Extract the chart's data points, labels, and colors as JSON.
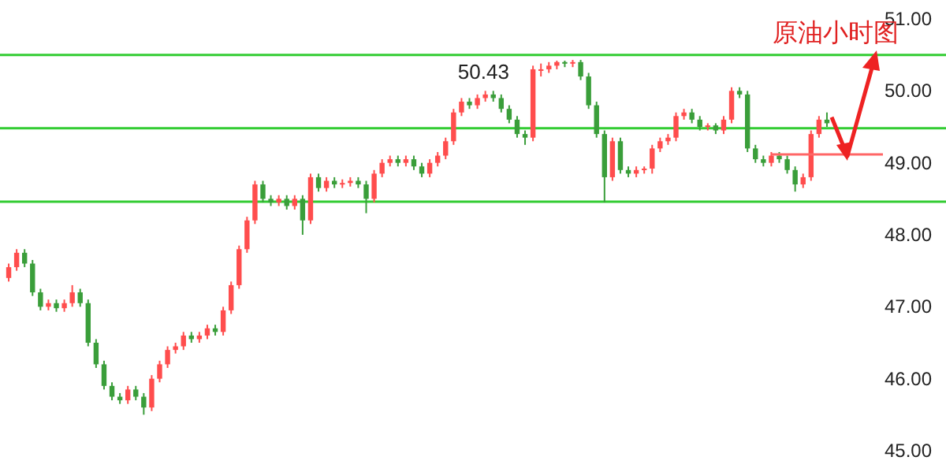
{
  "chart_data": {
    "type": "candlestick",
    "title": "原油小时图",
    "categories": [
      null,
      null,
      null,
      null,
      null,
      null,
      null,
      null,
      null,
      null,
      null,
      null,
      null,
      null,
      null,
      null,
      null,
      null,
      null,
      null,
      null,
      null,
      null,
      null,
      null,
      null,
      null,
      null,
      null,
      null,
      null,
      null,
      null,
      null,
      null,
      null,
      null,
      null,
      null,
      null,
      null,
      null,
      null,
      null,
      null,
      null,
      null,
      null,
      null,
      null,
      null,
      null,
      null,
      null,
      null,
      null,
      null,
      null,
      null,
      null,
      null,
      null,
      null,
      null,
      null,
      null,
      null,
      null,
      null,
      null,
      null,
      null,
      null,
      null,
      null,
      null,
      null,
      null,
      null,
      null,
      null,
      null,
      null,
      null,
      null,
      null,
      null,
      null,
      null,
      null,
      null,
      null,
      null,
      null,
      null,
      null,
      null,
      null,
      null,
      null,
      null,
      null,
      null,
      null
    ],
    "ohlc": [
      [
        47.4,
        47.6,
        47.35,
        47.55
      ],
      [
        47.55,
        47.8,
        47.5,
        47.75
      ],
      [
        47.75,
        47.8,
        47.55,
        47.6
      ],
      [
        47.6,
        47.65,
        47.15,
        47.2
      ],
      [
        47.2,
        47.25,
        46.95,
        47.0
      ],
      [
        47.0,
        47.1,
        46.95,
        47.05
      ],
      [
        47.05,
        47.1,
        46.93,
        46.98
      ],
      [
        46.98,
        47.1,
        46.93,
        47.05
      ],
      [
        47.05,
        47.3,
        47.0,
        47.2
      ],
      [
        47.2,
        47.25,
        47.0,
        47.05
      ],
      [
        47.05,
        47.1,
        46.45,
        46.5
      ],
      [
        46.5,
        46.55,
        46.15,
        46.2
      ],
      [
        46.2,
        46.25,
        45.85,
        45.9
      ],
      [
        45.9,
        45.95,
        45.7,
        45.75
      ],
      [
        45.75,
        45.8,
        45.65,
        45.7
      ],
      [
        45.7,
        45.9,
        45.65,
        45.85
      ],
      [
        45.85,
        45.9,
        45.7,
        45.75
      ],
      [
        45.75,
        45.8,
        45.5,
        45.6
      ],
      [
        45.6,
        46.05,
        45.55,
        46.0
      ],
      [
        46.0,
        46.25,
        45.95,
        46.2
      ],
      [
        46.2,
        46.45,
        46.15,
        46.4
      ],
      [
        46.4,
        46.5,
        46.35,
        46.45
      ],
      [
        46.45,
        46.65,
        46.4,
        46.6
      ],
      [
        46.6,
        46.65,
        46.5,
        46.55
      ],
      [
        46.55,
        46.65,
        46.5,
        46.6
      ],
      [
        46.6,
        46.75,
        46.55,
        46.7
      ],
      [
        46.7,
        46.75,
        46.6,
        46.65
      ],
      [
        46.65,
        47.0,
        46.6,
        46.95
      ],
      [
        46.95,
        47.35,
        46.9,
        47.3
      ],
      [
        47.3,
        47.85,
        47.25,
        47.8
      ],
      [
        47.8,
        48.25,
        47.75,
        48.2
      ],
      [
        48.2,
        48.75,
        48.15,
        48.7
      ],
      [
        48.7,
        48.75,
        48.45,
        48.5
      ],
      [
        48.5,
        48.55,
        48.4,
        48.45
      ],
      [
        48.45,
        48.55,
        48.4,
        48.5
      ],
      [
        48.5,
        48.55,
        48.35,
        48.4
      ],
      [
        48.4,
        48.55,
        48.35,
        48.5
      ],
      [
        48.5,
        48.55,
        48.0,
        48.2
      ],
      [
        48.2,
        48.85,
        48.15,
        48.8
      ],
      [
        48.8,
        48.85,
        48.6,
        48.65
      ],
      [
        48.65,
        48.8,
        48.6,
        48.75
      ],
      [
        48.75,
        48.8,
        48.65,
        48.7
      ],
      [
        48.7,
        48.77,
        48.65,
        48.72
      ],
      [
        48.72,
        48.8,
        48.67,
        48.75
      ],
      [
        48.75,
        48.8,
        48.65,
        48.7
      ],
      [
        48.7,
        48.75,
        48.3,
        48.5
      ],
      [
        48.5,
        48.9,
        48.45,
        48.85
      ],
      [
        48.85,
        49.05,
        48.8,
        49.0
      ],
      [
        49.0,
        49.1,
        48.95,
        49.05
      ],
      [
        49.05,
        49.1,
        48.95,
        49.0
      ],
      [
        49.0,
        49.1,
        48.95,
        49.05
      ],
      [
        49.05,
        49.1,
        48.9,
        48.95
      ],
      [
        48.95,
        49.0,
        48.8,
        48.85
      ],
      [
        48.85,
        49.05,
        48.8,
        49.0
      ],
      [
        49.0,
        49.15,
        48.95,
        49.1
      ],
      [
        49.1,
        49.35,
        49.05,
        49.3
      ],
      [
        49.3,
        49.75,
        49.25,
        49.7
      ],
      [
        49.7,
        49.9,
        49.65,
        49.85
      ],
      [
        49.85,
        49.9,
        49.75,
        49.8
      ],
      [
        49.8,
        49.95,
        49.75,
        49.9
      ],
      [
        49.9,
        50.0,
        49.85,
        49.95
      ],
      [
        49.95,
        50.0,
        49.85,
        49.9
      ],
      [
        49.9,
        49.95,
        49.7,
        49.75
      ],
      [
        49.75,
        49.8,
        49.55,
        49.6
      ],
      [
        49.6,
        49.65,
        49.35,
        49.4
      ],
      [
        49.4,
        49.45,
        49.25,
        49.35
      ],
      [
        49.35,
        50.35,
        49.3,
        50.3
      ],
      [
        50.3,
        50.38,
        50.2,
        50.3
      ],
      [
        50.3,
        50.4,
        50.25,
        50.35
      ],
      [
        50.35,
        50.42,
        50.3,
        50.4
      ],
      [
        50.4,
        50.42,
        50.33,
        50.38
      ],
      [
        50.38,
        50.43,
        50.33,
        50.4
      ],
      [
        50.4,
        50.43,
        50.15,
        50.2
      ],
      [
        50.2,
        50.25,
        49.75,
        49.8
      ],
      [
        49.8,
        49.85,
        49.35,
        49.4
      ],
      [
        49.4,
        49.45,
        48.45,
        48.8
      ],
      [
        48.8,
        49.35,
        48.75,
        49.3
      ],
      [
        49.3,
        49.35,
        48.85,
        48.9
      ],
      [
        48.9,
        48.95,
        48.8,
        48.85
      ],
      [
        48.85,
        48.95,
        48.8,
        48.9
      ],
      [
        48.9,
        48.95,
        48.85,
        48.92
      ],
      [
        48.92,
        49.25,
        48.85,
        49.2
      ],
      [
        49.2,
        49.35,
        49.15,
        49.3
      ],
      [
        49.3,
        49.4,
        49.25,
        49.35
      ],
      [
        49.35,
        49.7,
        49.3,
        49.65
      ],
      [
        49.65,
        49.75,
        49.6,
        49.7
      ],
      [
        49.7,
        49.75,
        49.55,
        49.6
      ],
      [
        49.6,
        49.65,
        49.45,
        49.5
      ],
      [
        49.5,
        49.55,
        49.45,
        49.52
      ],
      [
        49.52,
        49.55,
        49.4,
        49.45
      ],
      [
        49.45,
        49.65,
        49.4,
        49.6
      ],
      [
        49.6,
        50.05,
        49.55,
        50.0
      ],
      [
        50.0,
        50.05,
        49.9,
        49.95
      ],
      [
        49.95,
        50.0,
        49.15,
        49.2
      ],
      [
        49.2,
        49.25,
        49.0,
        49.05
      ],
      [
        49.05,
        49.1,
        48.95,
        49.0
      ],
      [
        49.0,
        49.15,
        48.95,
        49.1
      ],
      [
        49.1,
        49.15,
        49.0,
        49.05
      ],
      [
        49.05,
        49.1,
        48.85,
        48.9
      ],
      [
        48.9,
        48.95,
        48.6,
        48.7
      ],
      [
        48.7,
        48.85,
        48.65,
        48.8
      ],
      [
        48.8,
        49.45,
        48.75,
        49.4
      ],
      [
        49.4,
        49.65,
        49.35,
        49.6
      ],
      [
        49.6,
        49.7,
        49.5,
        49.55
      ]
    ],
    "ylim": [
      45,
      51
    ],
    "yticks": [
      {
        "value": 45,
        "label": "45.00"
      },
      {
        "value": 46,
        "label": "46.00"
      },
      {
        "value": 47,
        "label": "47.00"
      },
      {
        "value": 48,
        "label": "48.00"
      },
      {
        "value": 49,
        "label": "49.00"
      },
      {
        "value": 50,
        "label": "50.00"
      },
      {
        "value": 51,
        "label": "51.00"
      }
    ],
    "tick_labels": "y",
    "ref_lines": [
      {
        "axis": "y",
        "value": 50.5,
        "color": "#33cc33"
      },
      {
        "axis": "y",
        "value": 49.48,
        "color": "#33cc33"
      },
      {
        "axis": "y",
        "value": 48.46,
        "color": "#33cc33"
      }
    ],
    "annotations": [
      {
        "text": "50.43",
        "y": 50.43
      }
    ]
  }
}
